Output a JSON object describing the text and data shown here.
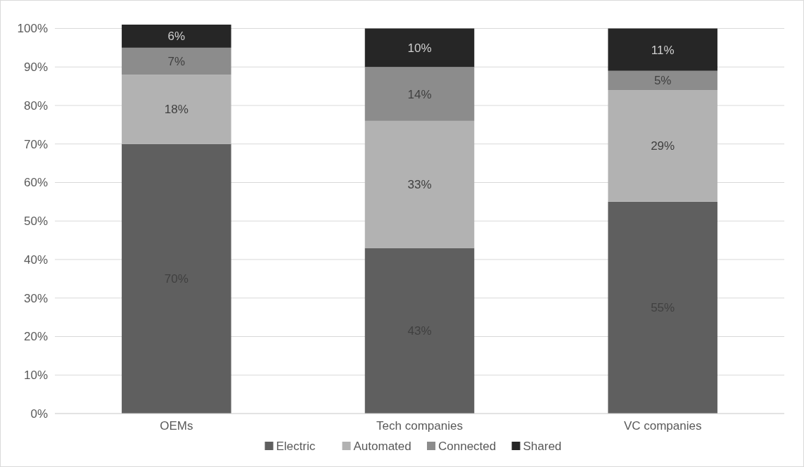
{
  "chart_data": {
    "type": "bar",
    "stacked": true,
    "categories": [
      "OEMs",
      "Tech companies",
      "VC companies"
    ],
    "series": [
      {
        "name": "Electric",
        "color": "#5f5f5f",
        "values": [
          70,
          43,
          55
        ],
        "value_labels": [
          "70%",
          "43%",
          "55%"
        ]
      },
      {
        "name": "Automated",
        "color": "#b2b2b2",
        "values": [
          18,
          33,
          29
        ],
        "value_labels": [
          "18%",
          "33%",
          "29%"
        ]
      },
      {
        "name": "Connected",
        "color": "#8c8c8c",
        "values": [
          7,
          14,
          5
        ],
        "value_labels": [
          "7%",
          "14%",
          "5%"
        ]
      },
      {
        "name": "Shared",
        "color": "#262626",
        "values": [
          6,
          10,
          11
        ],
        "value_labels": [
          "6%",
          "10%",
          "11%"
        ]
      }
    ],
    "ylim": [
      0,
      101
    ],
    "yticks": [
      {
        "value": 0,
        "label": "0%"
      },
      {
        "value": 10,
        "label": "10%"
      },
      {
        "value": 20,
        "label": "20%"
      },
      {
        "value": 30,
        "label": "30%"
      },
      {
        "value": 40,
        "label": "40%"
      },
      {
        "value": 50,
        "label": "50%"
      },
      {
        "value": 60,
        "label": "60%"
      },
      {
        "value": 70,
        "label": "70%"
      },
      {
        "value": 80,
        "label": "80%"
      },
      {
        "value": 90,
        "label": "90%"
      },
      {
        "value": 100,
        "label": "100%"
      }
    ],
    "grid": "y",
    "legend": "bottom"
  }
}
